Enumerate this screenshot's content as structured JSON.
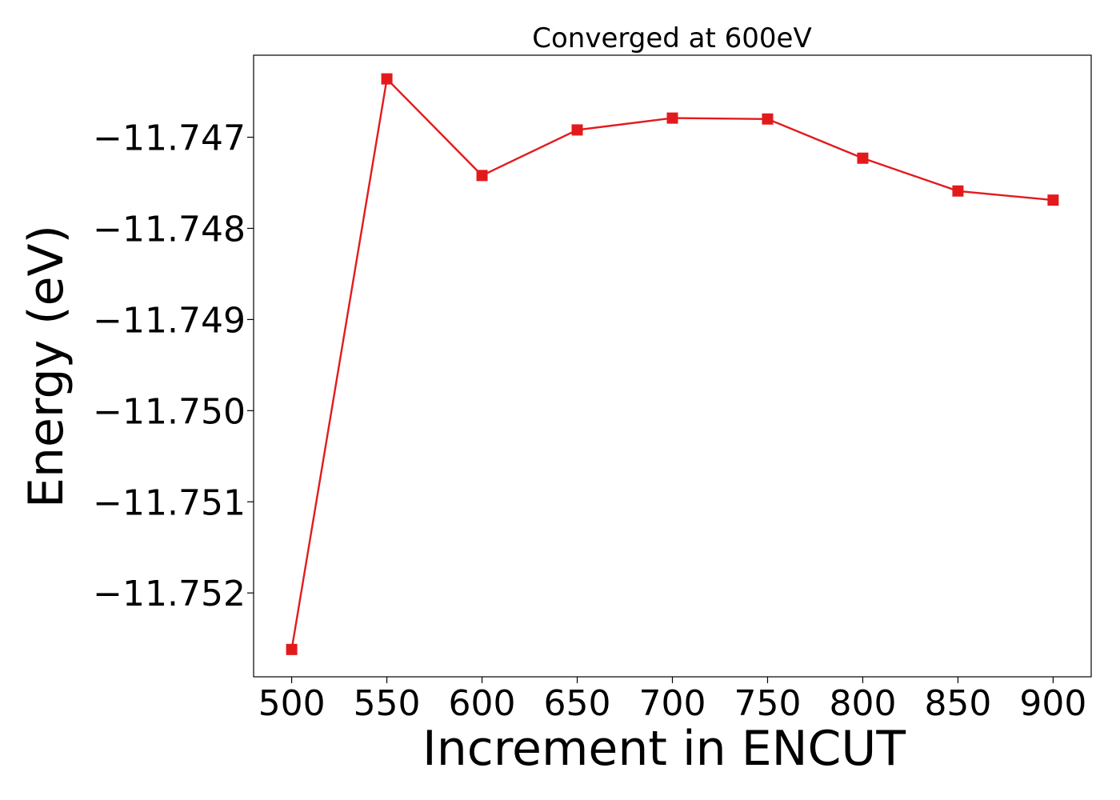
{
  "chart_data": {
    "type": "line",
    "title": "Converged at 600eV",
    "xlabel": "Increment in ENCUT",
    "ylabel": "Energy (eV)",
    "x": [
      500,
      550,
      600,
      650,
      700,
      750,
      800,
      850,
      900
    ],
    "series": [
      {
        "values": [
          -11.75262,
          -11.74636,
          -11.74742,
          -11.74692,
          -11.74679,
          -11.7468,
          -11.74723,
          -11.74759,
          -11.74769
        ],
        "color": "#e31a1c",
        "marker": "square"
      }
    ],
    "xticks": [
      500,
      550,
      600,
      650,
      700,
      750,
      800,
      850,
      900
    ],
    "xtick_labels": [
      "500",
      "550",
      "600",
      "650",
      "700",
      "750",
      "800",
      "850",
      "900"
    ],
    "yticks": [
      -11.752,
      -11.751,
      -11.75,
      -11.749,
      -11.748,
      -11.747
    ],
    "ytick_labels": [
      "−11.752",
      "−11.751",
      "−11.750",
      "−11.749",
      "−11.748",
      "−11.747"
    ],
    "xlim": [
      480,
      920
    ],
    "ylim": [
      -11.75292,
      -11.7461
    ],
    "grid": false,
    "legend": false
  }
}
